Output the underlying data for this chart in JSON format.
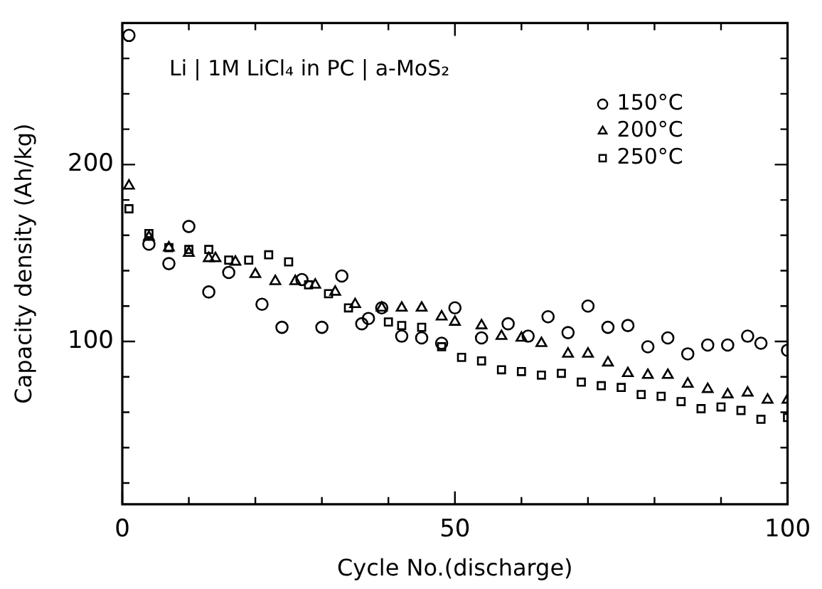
{
  "chart_data": {
    "type": "scatter",
    "xlabel": "Cycle No.(discharge)",
    "ylabel": "Capacity density (Ah/kg)",
    "annotations": [
      "Li | 1M LiCl₄ in PC | a-MoS₂"
    ],
    "xlim": [
      0,
      100
    ],
    "xticks": [
      0,
      {
        "value": 10,
        "label": null
      },
      {
        "value": 20,
        "label": null
      },
      {
        "value": 30,
        "label": null
      },
      {
        "value": 40,
        "label": null
      },
      50,
      {
        "value": 60,
        "label": null
      },
      {
        "value": 70,
        "label": null
      },
      {
        "value": 80,
        "label": null
      },
      {
        "value": 90,
        "label": null
      },
      100
    ],
    "ylim": [
      8,
      280
    ],
    "yticks": [
      {
        "value": 20,
        "label": null
      },
      {
        "value": 40,
        "label": null
      },
      {
        "value": 60,
        "label": null
      },
      {
        "value": 80,
        "label": null
      },
      100,
      {
        "value": 120,
        "label": null
      },
      {
        "value": 140,
        "label": null
      },
      {
        "value": 160,
        "label": null
      },
      {
        "value": 180,
        "label": null
      },
      200,
      {
        "value": 220,
        "label": null
      },
      {
        "value": 240,
        "label": null
      },
      {
        "value": 260,
        "label": null
      }
    ],
    "grid": false,
    "legend": "top right",
    "series": [
      {
        "name": "150°C",
        "color": "#000000",
        "marker": "circle",
        "x": [
          1,
          4,
          7,
          10,
          13,
          16,
          21,
          24,
          27,
          30,
          33,
          36,
          37,
          39,
          42,
          45,
          48,
          50,
          54,
          58,
          61,
          64,
          67,
          70,
          73,
          76,
          79,
          82,
          85,
          88,
          91,
          94,
          96,
          100
        ],
        "values": [
          273,
          155,
          144,
          165,
          128,
          139,
          121,
          108,
          135,
          108,
          137,
          110,
          113,
          119,
          103,
          102,
          99,
          119,
          102,
          110,
          103,
          114,
          105,
          120,
          108,
          109,
          97,
          102,
          93,
          98,
          98,
          103,
          99,
          95
        ]
      },
      {
        "name": "200°C",
        "color": "#000000",
        "marker": "triangle",
        "x": [
          1,
          4,
          7,
          10,
          13,
          14,
          17,
          20,
          23,
          26,
          29,
          32,
          35,
          39,
          42,
          45,
          48,
          50,
          54,
          57,
          60,
          63,
          67,
          70,
          73,
          76,
          79,
          82,
          85,
          88,
          91,
          94,
          97,
          100
        ],
        "values": [
          188,
          159,
          153,
          150,
          147,
          147,
          145,
          138,
          134,
          134,
          132,
          128,
          121,
          119,
          119,
          119,
          114,
          111,
          109,
          103,
          102,
          99,
          93,
          93,
          88,
          82,
          81,
          81,
          76,
          73,
          70,
          71,
          67,
          67
        ]
      },
      {
        "name": "250°C",
        "color": "#000000",
        "marker": "square",
        "x": [
          1,
          4,
          7,
          10,
          13,
          16,
          19,
          22,
          25,
          28,
          31,
          34,
          40,
          42,
          45,
          48,
          51,
          54,
          57,
          60,
          63,
          66,
          69,
          72,
          75,
          78,
          81,
          84,
          87,
          90,
          93,
          96,
          100
        ],
        "values": [
          175,
          161,
          153,
          152,
          152,
          146,
          146,
          149,
          145,
          132,
          127,
          119,
          111,
          109,
          108,
          97,
          91,
          89,
          84,
          83,
          81,
          82,
          77,
          75,
          74,
          70,
          69,
          66,
          62,
          63,
          61,
          56,
          57
        ]
      }
    ]
  }
}
